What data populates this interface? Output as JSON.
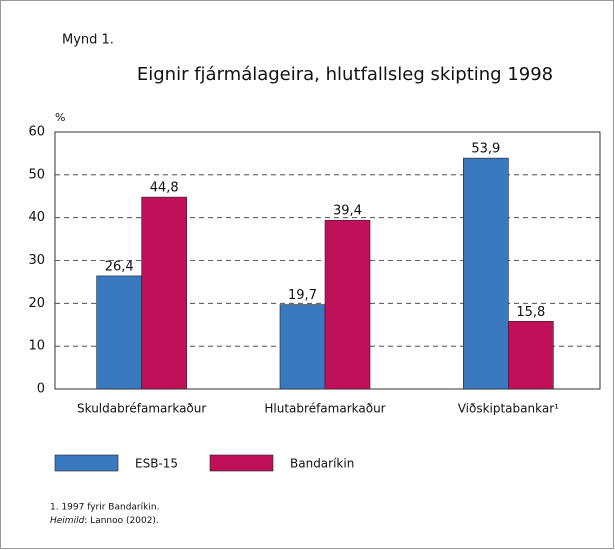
{
  "chart_data": {
    "type": "bar",
    "figure_label": "Mynd 1.",
    "title": "Eignir fjármálageira, hlutfallsleg skipting 1998",
    "y_unit": "%",
    "categories": [
      "Skuldabréfamarkaður",
      "Hlutabréfamarkaður",
      "Viðskiptabankar¹"
    ],
    "series": [
      {
        "name": "ESB-15",
        "color": "#3a78c0",
        "values": [
          26.4,
          19.7,
          53.9
        ],
        "value_labels": [
          "26,4",
          "19,7",
          "53,9"
        ]
      },
      {
        "name": "Bandaríkin",
        "color": "#c0105a",
        "values": [
          44.8,
          39.4,
          15.8
        ],
        "value_labels": [
          "44,8",
          "39,4",
          "15,8"
        ]
      }
    ],
    "ylim": [
      0,
      60
    ],
    "yticks": [
      0,
      10,
      20,
      30,
      40,
      50,
      60
    ],
    "grid": true,
    "footnote": "1. 1997 fyrir Bandaríkin.",
    "source_label": "Heimild",
    "source_text": ": Lannoo (2002)."
  }
}
